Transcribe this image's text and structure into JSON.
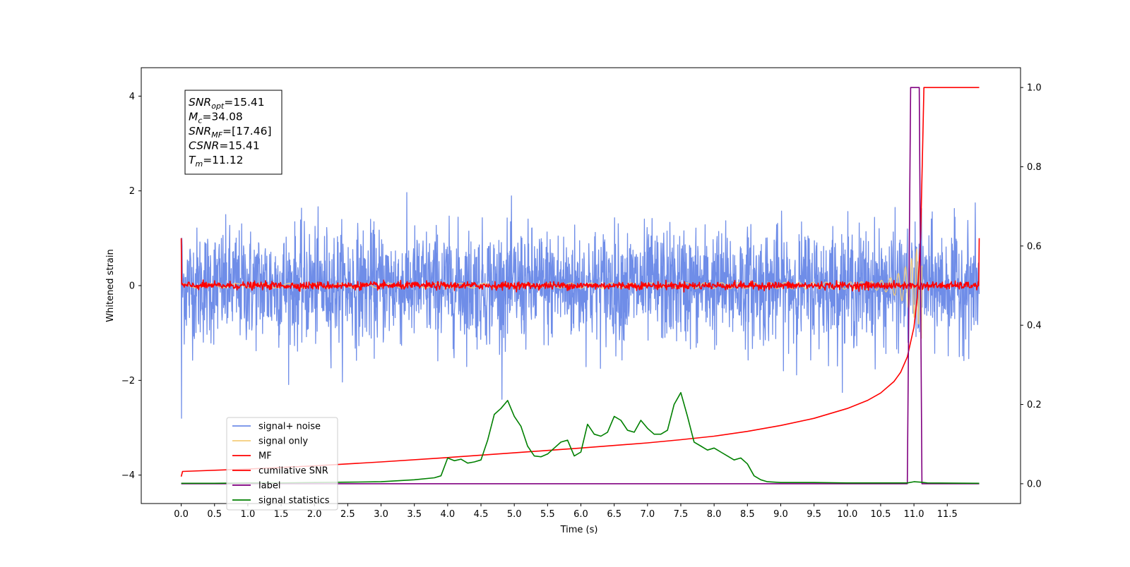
{
  "chart_data": {
    "type": "line",
    "title": "",
    "xlabel": "Time (s)",
    "ylabel": "Whitened strain",
    "y2label": "",
    "xlim": [
      -0.6,
      12.6
    ],
    "ylim": [
      -4.6,
      4.6
    ],
    "y2lim": [
      -0.05,
      1.05
    ],
    "xticks": [
      0.0,
      0.5,
      1.0,
      1.5,
      2.0,
      2.5,
      3.0,
      3.5,
      4.0,
      4.5,
      5.0,
      5.5,
      6.0,
      6.5,
      7.0,
      7.5,
      8.0,
      8.5,
      9.0,
      9.5,
      10.0,
      10.5,
      11.0,
      11.5
    ],
    "xtick_labels": [
      "0.0",
      "0.5",
      "1.0",
      "1.5",
      "2.0",
      "2.5",
      "3.0",
      "3.5",
      "4.0",
      "4.5",
      "5.0",
      "5.5",
      "6.0",
      "6.5",
      "7.0",
      "7.5",
      "8.0",
      "8.5",
      "9.0",
      "9.5",
      "10.0",
      "10.5",
      "11.0",
      "11.5"
    ],
    "yticks": [
      -4,
      -2,
      0,
      2,
      4
    ],
    "ytick_labels": [
      "−4",
      "−2",
      "0",
      "2",
      "4"
    ],
    "y2ticks": [
      0.0,
      0.2,
      0.4,
      0.6,
      0.8,
      1.0
    ],
    "y2tick_labels": [
      "0.0",
      "0.2",
      "0.4",
      "0.6",
      "0.8",
      "1.0"
    ],
    "grid": false,
    "legend_position": "lower-left",
    "annotation": {
      "lines": [
        {
          "sym": "SNR",
          "sub": "opt",
          "value": "=15.41"
        },
        {
          "sym": "M",
          "sub": "c",
          "value": "=34.08"
        },
        {
          "sym": "SNR",
          "sub": "MF",
          "value": "=[17.46]"
        },
        {
          "sym": "CSNR",
          "sub": "",
          "value": "=15.41"
        },
        {
          "sym": "T",
          "sub": "m",
          "value": "=11.12"
        }
      ]
    },
    "series": [
      {
        "name": "signal+ noise",
        "color": "#6f8de8",
        "axis": "left",
        "kind": "noise",
        "amplitude_sd": 0.6,
        "x_range": [
          0.0,
          11.98
        ]
      },
      {
        "name": "signal only",
        "color": "#f5cd7a",
        "axis": "left",
        "kind": "chirp",
        "merger_time": 11.12,
        "x_range": [
          0.0,
          11.12
        ]
      },
      {
        "name": "MF",
        "color": "#ff0000",
        "axis": "left",
        "kind": "small-noise",
        "amplitude_sd": 0.04,
        "edge_value": 1.0,
        "x_range": [
          0.0,
          11.98
        ]
      },
      {
        "name": "cumilative SNR",
        "color": "#ff0000",
        "axis": "right",
        "x": [
          0.0,
          0.02,
          1.0,
          2.0,
          3.0,
          4.0,
          5.0,
          6.0,
          7.0,
          7.5,
          8.0,
          8.5,
          9.0,
          9.5,
          10.0,
          10.3,
          10.5,
          10.7,
          10.8,
          10.9,
          11.0,
          11.05,
          11.1,
          11.13,
          11.15,
          11.98
        ],
        "y": [
          0.018,
          0.031,
          0.037,
          0.045,
          0.055,
          0.066,
          0.078,
          0.09,
          0.103,
          0.111,
          0.12,
          0.132,
          0.147,
          0.165,
          0.19,
          0.21,
          0.229,
          0.258,
          0.281,
          0.32,
          0.395,
          0.47,
          0.62,
          0.85,
          1.0,
          1.0
        ]
      },
      {
        "name": "label",
        "color": "#800080",
        "axis": "right",
        "x": [
          0.0,
          10.9,
          10.95,
          11.08,
          11.12,
          11.98
        ],
        "y": [
          0.0,
          0.0,
          1.0,
          1.0,
          0.0,
          0.0
        ]
      },
      {
        "name": "signal statistics",
        "color": "#008000",
        "axis": "right",
        "x": [
          0.0,
          0.5,
          1.0,
          1.5,
          2.0,
          2.5,
          3.0,
          3.5,
          3.8,
          3.9,
          4.0,
          4.1,
          4.2,
          4.3,
          4.4,
          4.5,
          4.6,
          4.7,
          4.8,
          4.9,
          5.0,
          5.1,
          5.2,
          5.3,
          5.4,
          5.5,
          5.6,
          5.7,
          5.8,
          5.9,
          6.0,
          6.1,
          6.2,
          6.3,
          6.4,
          6.5,
          6.6,
          6.7,
          6.8,
          6.9,
          7.0,
          7.1,
          7.2,
          7.3,
          7.4,
          7.5,
          7.6,
          7.7,
          7.8,
          7.9,
          8.0,
          8.1,
          8.2,
          8.3,
          8.4,
          8.5,
          8.6,
          8.7,
          8.8,
          9.0,
          9.5,
          10.0,
          10.5,
          10.9,
          11.0,
          11.1,
          11.2,
          11.98
        ],
        "y": [
          0.001,
          0.001,
          0.002,
          0.002,
          0.003,
          0.004,
          0.005,
          0.01,
          0.015,
          0.02,
          0.065,
          0.058,
          0.062,
          0.052,
          0.055,
          0.06,
          0.11,
          0.175,
          0.19,
          0.21,
          0.17,
          0.145,
          0.095,
          0.07,
          0.068,
          0.075,
          0.09,
          0.105,
          0.11,
          0.07,
          0.08,
          0.15,
          0.125,
          0.12,
          0.13,
          0.17,
          0.16,
          0.135,
          0.13,
          0.16,
          0.14,
          0.125,
          0.125,
          0.135,
          0.2,
          0.23,
          0.17,
          0.105,
          0.095,
          0.085,
          0.09,
          0.08,
          0.07,
          0.06,
          0.065,
          0.05,
          0.02,
          0.01,
          0.005,
          0.003,
          0.003,
          0.002,
          0.002,
          0.002,
          0.005,
          0.004,
          0.002,
          0.001
        ]
      }
    ]
  }
}
